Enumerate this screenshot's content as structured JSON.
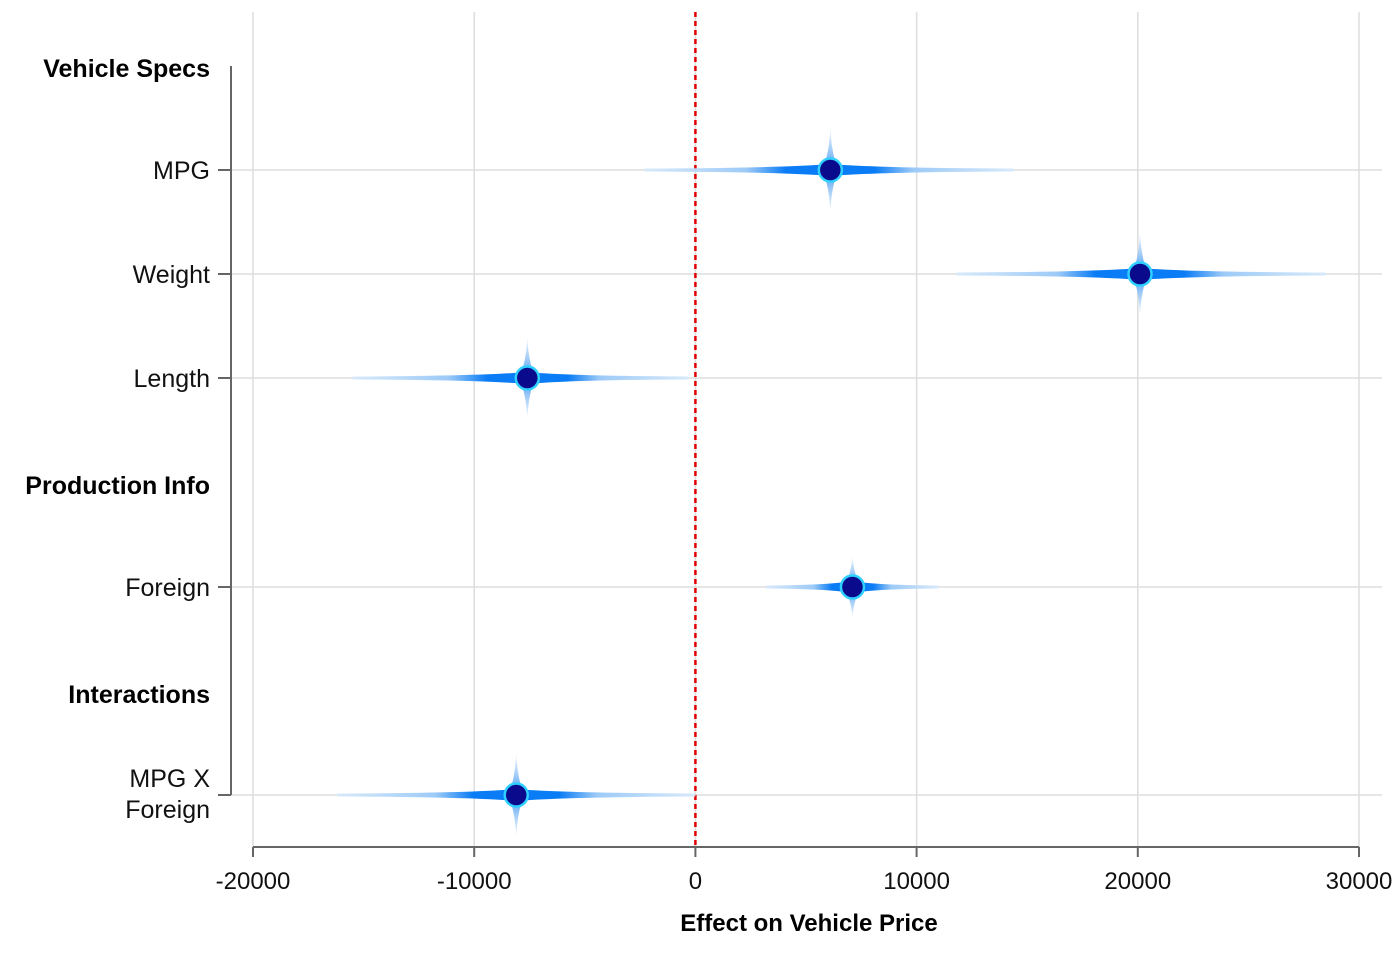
{
  "chart_data": {
    "type": "scatter",
    "subtype": "coefficient-plot-with-uncertainty",
    "xlabel": "Effect on Vehicle Price",
    "xlim": [
      -20000,
      30000
    ],
    "xticks": [
      -20000,
      -10000,
      0,
      10000,
      20000,
      30000
    ],
    "reference_line": {
      "x": 0,
      "color": "#e00000",
      "style": "dashed"
    },
    "grid": "on",
    "colors": {
      "point_fill": "#0a0a8c",
      "point_stroke": "#2fd0ff",
      "band_core": "#0a7cf5",
      "band_fade": "#d6e9fb",
      "grid": "#dddddd",
      "axis": "#666666"
    },
    "rows": [
      {
        "kind": "group",
        "label": "Vehicle Specs"
      },
      {
        "kind": "coef",
        "label": "MPG",
        "estimate": 6100,
        "low": -2300,
        "high": 14400,
        "spread": 1700
      },
      {
        "kind": "coef",
        "label": "Weight",
        "estimate": 20100,
        "low": 11800,
        "high": 28500,
        "spread": 1700
      },
      {
        "kind": "coef",
        "label": "Length",
        "estimate": -7600,
        "low": -15500,
        "high": -300,
        "spread": 1600
      },
      {
        "kind": "group",
        "label": "Production Info"
      },
      {
        "kind": "coef",
        "label": "Foreign",
        "estimate": 7100,
        "low": 3200,
        "high": 11000,
        "spread": 800
      },
      {
        "kind": "group",
        "label": "Interactions"
      },
      {
        "kind": "coef",
        "label": "MPG X Foreign",
        "label_lines": [
          "MPG X",
          "Foreign"
        ],
        "estimate": -8100,
        "low": -16200,
        "high": 0,
        "spread": 1700
      }
    ]
  }
}
